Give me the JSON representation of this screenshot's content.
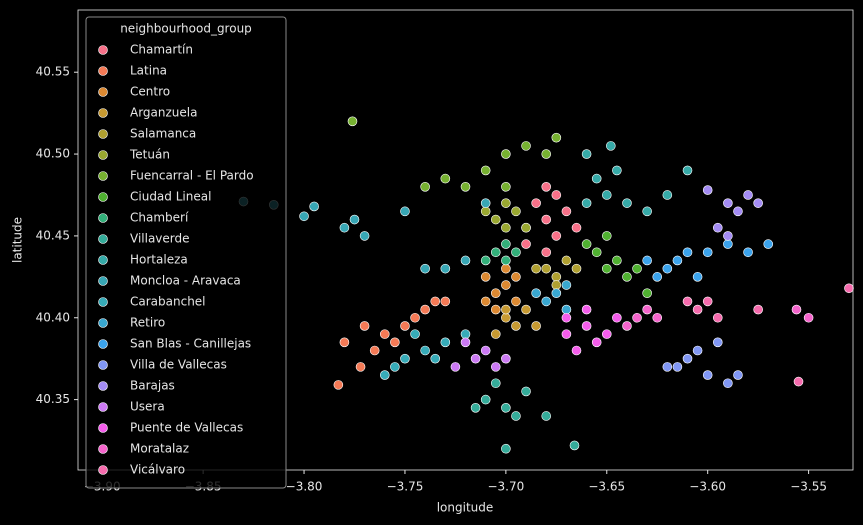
{
  "chart_data": {
    "type": "scatter",
    "xlabel": "longitude",
    "ylabel": "latitude",
    "legend_title": "neighbourhood_group",
    "legend": "upper left",
    "xlim": [
      -3.912,
      -3.528
    ],
    "ylim": [
      40.307,
      40.588
    ],
    "xticks": [
      {
        "value": -3.9,
        "label": "−3.90"
      },
      {
        "value": -3.85,
        "label": "−3.85"
      },
      {
        "value": -3.8,
        "label": "−3.80"
      },
      {
        "value": -3.75,
        "label": "−3.75"
      },
      {
        "value": -3.7,
        "label": "−3.70"
      },
      {
        "value": -3.65,
        "label": "−3.65"
      },
      {
        "value": -3.6,
        "label": "−3.60"
      },
      {
        "value": -3.55,
        "label": "−3.55"
      }
    ],
    "yticks": [
      40.35,
      {
        "value": 40.4,
        "label": "40.40"
      },
      40.45,
      {
        "value": 40.5,
        "label": "40.50"
      },
      40.55
    ],
    "series": [
      {
        "name": "Chamartín",
        "color": "#f77189",
        "x": [
          -3.69,
          -3.68,
          -3.675,
          -3.685,
          -3.67,
          -3.68,
          -3.69,
          -3.675,
          -3.665,
          -3.68
        ],
        "y": [
          40.455,
          40.46,
          40.45,
          40.47,
          40.465,
          40.44,
          40.445,
          40.475,
          40.455,
          40.48
        ]
      },
      {
        "name": "Latina",
        "color": "#f47a56",
        "x": [
          -3.77,
          -3.76,
          -3.75,
          -3.74,
          -3.73,
          -3.765,
          -3.755,
          -3.745,
          -3.78,
          -3.772,
          -3.783,
          -3.735
        ],
        "y": [
          40.395,
          40.39,
          40.395,
          40.405,
          40.41,
          40.38,
          40.385,
          40.4,
          40.385,
          40.37,
          40.359,
          40.41
        ]
      },
      {
        "name": "Centro",
        "color": "#dc8932",
        "x": [
          -3.705,
          -3.7,
          -3.695,
          -3.71,
          -3.7,
          -3.705,
          -3.695,
          -3.71
        ],
        "y": [
          40.415,
          40.42,
          40.41,
          40.425,
          40.43,
          40.405,
          40.425,
          40.41
        ]
      },
      {
        "name": "Arganzuela",
        "color": "#c79a32",
        "x": [
          -3.7,
          -3.695,
          -3.69,
          -3.705,
          -3.685,
          -3.7
        ],
        "y": [
          40.4,
          40.395,
          40.405,
          40.39,
          40.395,
          40.405
        ]
      },
      {
        "name": "Salamanca",
        "color": "#b0a031",
        "x": [
          -3.68,
          -3.675,
          -3.67,
          -3.685,
          -3.665,
          -3.675
        ],
        "y": [
          40.43,
          40.425,
          40.435,
          40.43,
          40.43,
          40.42
        ]
      },
      {
        "name": "Tetuán",
        "color": "#9aa831",
        "x": [
          -3.705,
          -3.7,
          -3.695,
          -3.71,
          -3.7,
          -3.69
        ],
        "y": [
          40.46,
          40.455,
          40.465,
          40.465,
          40.47,
          40.455
        ]
      },
      {
        "name": "Fuencarral - El Pardo",
        "color": "#77b131",
        "x": [
          -3.72,
          -3.71,
          -3.7,
          -3.73,
          -3.74,
          -3.69,
          -3.68,
          -3.675,
          -3.7,
          -3.776
        ],
        "y": [
          40.48,
          40.49,
          40.5,
          40.485,
          40.48,
          40.505,
          40.5,
          40.51,
          40.48,
          40.52
        ]
      },
      {
        "name": "Ciudad Lineal",
        "color": "#50b131",
        "x": [
          -3.655,
          -3.65,
          -3.645,
          -3.64,
          -3.66,
          -3.65,
          -3.635,
          -3.63
        ],
        "y": [
          40.44,
          40.43,
          40.435,
          40.425,
          40.445,
          40.45,
          40.43,
          40.415
        ]
      },
      {
        "name": "Chamberí",
        "color": "#33b07a",
        "x": [
          -3.705,
          -3.7,
          -3.695,
          -3.71,
          -3.7
        ],
        "y": [
          40.44,
          40.435,
          40.44,
          40.435,
          40.445
        ]
      },
      {
        "name": "Villaverde",
        "color": "#35ac9a",
        "x": [
          -3.71,
          -3.7,
          -3.69,
          -3.695,
          -3.705,
          -3.68,
          -3.715,
          -3.666,
          -3.7
        ],
        "y": [
          40.35,
          40.345,
          40.355,
          40.34,
          40.36,
          40.34,
          40.345,
          40.322,
          40.32
        ]
      },
      {
        "name": "Hortaleza",
        "color": "#36aaa8",
        "x": [
          -3.66,
          -3.65,
          -3.64,
          -3.655,
          -3.645,
          -3.63,
          -3.62,
          -3.61,
          -3.66,
          -3.648
        ],
        "y": [
          40.47,
          40.475,
          40.47,
          40.485,
          40.49,
          40.465,
          40.475,
          40.49,
          40.5,
          40.505
        ]
      },
      {
        "name": "Moncloa - Aravaca",
        "color": "#38a7b5",
        "x": [
          -3.73,
          -3.72,
          -3.74,
          -3.78,
          -3.775,
          -3.77,
          -3.8,
          -3.795,
          -3.75,
          -3.83,
          -3.815,
          -3.71
        ],
        "y": [
          40.43,
          40.435,
          40.43,
          40.455,
          40.46,
          40.45,
          40.462,
          40.468,
          40.465,
          40.471,
          40.469,
          40.47
        ]
      },
      {
        "name": "Carabanchel",
        "color": "#37abb8",
        "x": [
          -3.74,
          -3.73,
          -3.735,
          -3.745,
          -3.72,
          -3.755,
          -3.76,
          -3.75
        ],
        "y": [
          40.38,
          40.385,
          40.375,
          40.39,
          40.39,
          40.37,
          40.365,
          40.375
        ]
      },
      {
        "name": "Retiro",
        "color": "#39a7d0",
        "x": [
          -3.68,
          -3.675,
          -3.67,
          -3.685,
          -3.67
        ],
        "y": [
          40.41,
          40.415,
          40.405,
          40.415,
          40.42
        ]
      },
      {
        "name": "San Blas - Canillejas",
        "color": "#3ba3ec",
        "x": [
          -3.62,
          -3.615,
          -3.61,
          -3.625,
          -3.605,
          -3.6,
          -3.59,
          -3.58,
          -3.57,
          -3.63
        ],
        "y": [
          40.43,
          40.435,
          40.44,
          40.425,
          40.425,
          40.44,
          40.445,
          40.44,
          40.445,
          40.435
        ]
      },
      {
        "name": "Villa de Vallecas",
        "color": "#8197f4",
        "x": [
          -3.62,
          -3.61,
          -3.605,
          -3.6,
          -3.59,
          -3.585,
          -3.595,
          -3.615
        ],
        "y": [
          40.37,
          40.375,
          40.38,
          40.365,
          40.36,
          40.365,
          40.385,
          40.37
        ]
      },
      {
        "name": "Barajas",
        "color": "#a48cf4",
        "x": [
          -3.59,
          -3.585,
          -3.58,
          -3.595,
          -3.575,
          -3.59,
          -3.6
        ],
        "y": [
          40.47,
          40.465,
          40.475,
          40.455,
          40.47,
          40.45,
          40.478
        ]
      },
      {
        "name": "Usera",
        "color": "#cc7af4",
        "x": [
          -3.71,
          -3.715,
          -3.72,
          -3.705,
          -3.7,
          -3.725
        ],
        "y": [
          40.38,
          40.375,
          40.385,
          40.37,
          40.375,
          40.37
        ]
      },
      {
        "name": "Puente de Vallecas",
        "color": "#f45deb",
        "x": [
          -3.67,
          -3.66,
          -3.655,
          -3.665,
          -3.65,
          -3.645,
          -3.66,
          -3.67
        ],
        "y": [
          40.39,
          40.395,
          40.385,
          40.38,
          40.39,
          40.4,
          40.405,
          40.4
        ]
      },
      {
        "name": "Moratalaz",
        "color": "#f565cc",
        "x": [
          -3.635,
          -3.63,
          -3.625,
          -3.64,
          -3.55,
          -3.556
        ],
        "y": [
          40.4,
          40.405,
          40.4,
          40.395,
          40.4,
          40.405
        ]
      },
      {
        "name": "Vicálvaro",
        "color": "#f66bad",
        "x": [
          -3.61,
          -3.605,
          -3.6,
          -3.595,
          -3.53,
          -3.555,
          -3.575
        ],
        "y": [
          40.41,
          40.405,
          40.41,
          40.4,
          40.418,
          40.361,
          40.405
        ]
      }
    ]
  }
}
